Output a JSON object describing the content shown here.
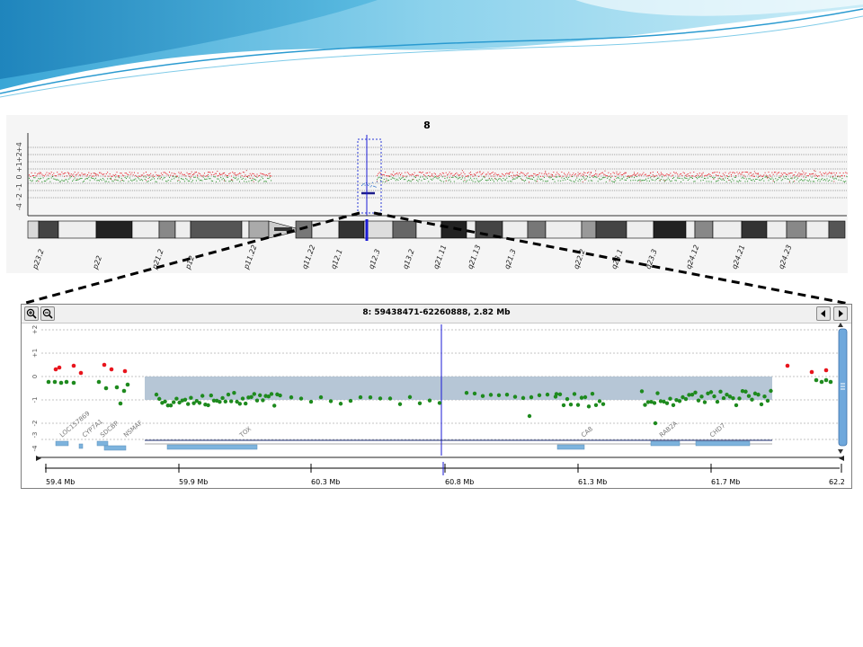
{
  "overview": {
    "chromosome": "8",
    "y_axis_labels": [
      "-4",
      "-2",
      "-1",
      "0",
      "+1",
      "+2",
      "+4"
    ],
    "bands": [
      "p23.2",
      "p22",
      "p21.2",
      "p12",
      "p11.22",
      "q11.22",
      "q12.1",
      "q12.3",
      "q13.2",
      "q21.11",
      "q21.13",
      "q21.3",
      "q22.2",
      "q23.1",
      "q23.3",
      "q24.12",
      "q24.21",
      "q24.23"
    ]
  },
  "detail": {
    "region_label": "8: 59438471-62260888, 2.82 Mb",
    "zoom_in_icon": "zoom-in-icon",
    "zoom_out_icon": "zoom-out-icon",
    "prev_icon": "arrow-left-icon",
    "next_icon": "arrow-right-icon",
    "y_axis_labels": [
      "+2",
      "+1",
      "0",
      "-1",
      "-2",
      "-3",
      "-4"
    ],
    "genes": [
      "LOC157869",
      "CYP7A1",
      "SDCBP",
      "NSMAF",
      "TOX",
      "CA8",
      "RAB2A",
      "CHD7"
    ],
    "x_axis_labels": [
      "59.4 Mb",
      "59.9 Mb",
      "60.3 Mb",
      "60.8 Mb",
      "61.3 Mb",
      "61.7 Mb",
      "62.2"
    ],
    "colors": {
      "gain": "#e8141c",
      "loss": "#1e8a1e",
      "segment": "#a9bccf",
      "cursor": "#1a1ad6"
    }
  }
}
